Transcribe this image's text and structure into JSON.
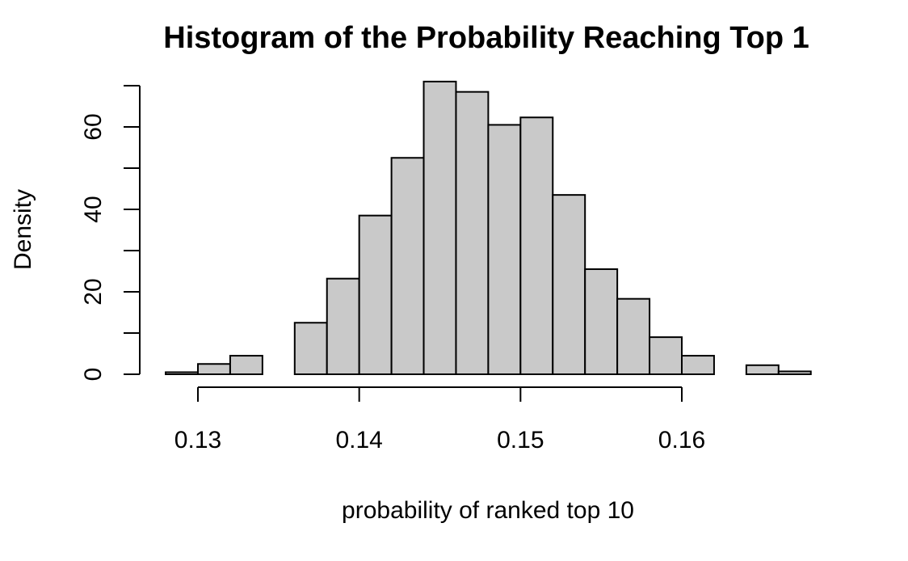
{
  "chart_data": {
    "type": "histogram",
    "title": "Histogram of the Probability Reaching Top 1",
    "xlabel": "probability of ranked top 10",
    "ylabel": "Density",
    "xlim": [
      0.13,
      0.16
    ],
    "ylim": [
      0,
      70
    ],
    "x_ticks": [
      0.13,
      0.14,
      0.15,
      0.16
    ],
    "x_tick_labels": [
      "0.13",
      "0.14",
      "0.15",
      "0.16"
    ],
    "y_ticks": [
      0,
      10,
      20,
      30,
      40,
      50,
      60,
      70
    ],
    "y_tick_labels": [
      "0",
      "",
      "20",
      "",
      "40",
      "",
      "60",
      ""
    ],
    "bin_width": 0.002,
    "bins": [
      {
        "start": 0.128,
        "end": 0.13,
        "density": 0.5
      },
      {
        "start": 0.13,
        "end": 0.132,
        "density": 2.5
      },
      {
        "start": 0.132,
        "end": 0.134,
        "density": 4.5
      },
      {
        "start": 0.134,
        "end": 0.136,
        "density": 0
      },
      {
        "start": 0.136,
        "end": 0.138,
        "density": 12.5
      },
      {
        "start": 0.138,
        "end": 0.14,
        "density": 23.2
      },
      {
        "start": 0.14,
        "end": 0.142,
        "density": 38.5
      },
      {
        "start": 0.142,
        "end": 0.144,
        "density": 52.5
      },
      {
        "start": 0.144,
        "end": 0.146,
        "density": 71.0
      },
      {
        "start": 0.146,
        "end": 0.148,
        "density": 68.5
      },
      {
        "start": 0.148,
        "end": 0.15,
        "density": 60.5
      },
      {
        "start": 0.15,
        "end": 0.152,
        "density": 62.3
      },
      {
        "start": 0.152,
        "end": 0.154,
        "density": 43.5
      },
      {
        "start": 0.154,
        "end": 0.156,
        "density": 25.5
      },
      {
        "start": 0.156,
        "end": 0.158,
        "density": 18.3
      },
      {
        "start": 0.158,
        "end": 0.16,
        "density": 9.0
      },
      {
        "start": 0.16,
        "end": 0.162,
        "density": 4.5
      },
      {
        "start": 0.162,
        "end": 0.164,
        "density": 0
      },
      {
        "start": 0.164,
        "end": 0.166,
        "density": 2.2
      },
      {
        "start": 0.166,
        "end": 0.168,
        "density": 0.7
      }
    ],
    "bar_fill": "#c9c9c9",
    "bar_stroke": "#000000",
    "grid": false,
    "legend": "none"
  }
}
